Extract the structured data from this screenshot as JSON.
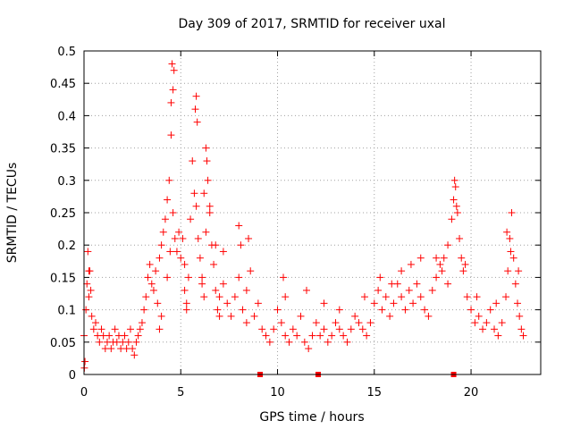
{
  "chart_data": {
    "type": "scatter",
    "title": "Day 309 of 2017, SRMTID for receiver uxal",
    "xlabel": "GPS time / hours",
    "ylabel": "SRMTID / TECUs",
    "xlim": [
      0,
      23.6
    ],
    "ylim": [
      0,
      0.5
    ],
    "xticks": [
      0,
      5,
      10,
      15,
      20
    ],
    "xtick_labels": [
      "0",
      "5",
      "10",
      "15",
      "20"
    ],
    "yticks": [
      0,
      0.05,
      0.1,
      0.15,
      0.2,
      0.25,
      0.3,
      0.35,
      0.4,
      0.45,
      0.5
    ],
    "ytick_labels": [
      "0",
      "0.05",
      "0.1",
      "0.15",
      "0.2",
      "0.25",
      "0.3",
      "0.35",
      "0.4",
      "0.45",
      "0.5"
    ],
    "grid": true,
    "marker": "plus",
    "color": "#ff0000",
    "zero_markers_x": [
      9.1,
      12.1,
      19.1
    ],
    "series": [
      {
        "name": "SRMTID",
        "x": [
          0.0,
          0.05,
          0.1,
          0.15,
          0.2,
          0.25,
          0.3,
          0.35,
          0.4,
          0.5,
          0.6,
          0.7,
          0.8,
          0.9,
          1.0,
          1.1,
          1.2,
          1.3,
          1.4,
          1.5,
          1.6,
          1.7,
          1.8,
          1.9,
          2.0,
          2.1,
          2.2,
          2.3,
          2.4,
          2.5,
          2.6,
          2.7,
          2.8,
          2.9,
          3.0,
          3.1,
          3.2,
          3.3,
          3.4,
          3.5,
          3.6,
          3.7,
          3.8,
          3.9,
          4.0,
          4.1,
          4.2,
          4.3,
          4.4,
          4.5,
          4.6,
          4.7,
          4.8,
          4.9,
          5.0,
          5.1,
          5.2,
          5.3,
          5.4,
          5.5,
          5.6,
          5.7,
          5.8,
          5.9,
          6.0,
          6.1,
          6.2,
          6.3,
          6.4,
          6.5,
          6.6,
          6.7,
          6.8,
          6.9,
          7.0,
          7.2,
          7.4,
          7.6,
          7.8,
          8.0,
          8.2,
          8.4,
          8.6,
          8.8,
          9.0,
          9.2,
          9.4,
          9.6,
          9.8,
          10.0,
          10.2,
          10.4,
          10.6,
          10.8,
          11.0,
          11.2,
          11.4,
          11.6,
          11.8,
          12.0,
          12.2,
          12.4,
          12.6,
          12.8,
          13.0,
          13.2,
          13.4,
          13.6,
          13.8,
          14.0,
          14.2,
          14.4,
          14.6,
          14.8,
          15.0,
          15.2,
          15.4,
          15.6,
          15.8,
          16.0,
          16.2,
          16.4,
          16.6,
          16.8,
          17.0,
          17.2,
          17.4,
          17.6,
          17.8,
          18.0,
          18.2,
          18.4,
          18.6,
          18.8,
          19.0,
          19.1,
          19.2,
          19.3,
          19.4,
          19.6,
          19.8,
          20.0,
          20.2,
          20.4,
          20.6,
          20.8,
          21.0,
          21.2,
          21.4,
          21.6,
          21.8,
          21.9,
          22.0,
          22.1,
          22.2,
          22.3,
          22.4,
          22.5,
          22.6,
          22.7,
          4.55,
          4.6,
          4.5,
          4.65,
          5.75,
          5.85,
          5.8,
          6.3,
          6.35,
          6.5,
          19.15,
          19.25,
          8.0,
          8.1,
          0.25,
          0.02,
          4.0,
          3.9,
          4.3,
          4.45,
          5.2,
          5.3,
          6.1,
          6.2,
          6.8,
          7.0,
          7.2,
          8.4,
          8.5,
          10.3,
          10.4,
          11.5,
          12.4,
          13.2,
          14.5,
          15.3,
          15.9,
          16.4,
          16.9,
          17.4,
          18.2,
          18.5,
          18.8,
          19.5,
          19.7,
          20.3,
          21.3,
          21.85,
          22.05,
          22.45
        ],
        "y": [
          0.06,
          0.02,
          0.1,
          0.14,
          0.19,
          0.12,
          0.16,
          0.13,
          0.09,
          0.07,
          0.08,
          0.06,
          0.05,
          0.07,
          0.06,
          0.04,
          0.05,
          0.06,
          0.04,
          0.05,
          0.07,
          0.05,
          0.06,
          0.04,
          0.05,
          0.06,
          0.04,
          0.05,
          0.07,
          0.04,
          0.03,
          0.05,
          0.06,
          0.07,
          0.08,
          0.1,
          0.12,
          0.15,
          0.17,
          0.14,
          0.13,
          0.16,
          0.11,
          0.18,
          0.2,
          0.22,
          0.24,
          0.27,
          0.3,
          0.37,
          0.25,
          0.21,
          0.19,
          0.22,
          0.18,
          0.21,
          0.13,
          0.1,
          0.15,
          0.24,
          0.33,
          0.28,
          0.26,
          0.21,
          0.18,
          0.15,
          0.12,
          0.22,
          0.3,
          0.25,
          0.2,
          0.17,
          0.13,
          0.1,
          0.12,
          0.14,
          0.11,
          0.09,
          0.12,
          0.15,
          0.1,
          0.08,
          0.16,
          0.09,
          0.11,
          0.07,
          0.06,
          0.05,
          0.07,
          0.1,
          0.08,
          0.06,
          0.05,
          0.07,
          0.06,
          0.09,
          0.05,
          0.04,
          0.06,
          0.08,
          0.06,
          0.07,
          0.05,
          0.06,
          0.08,
          0.07,
          0.06,
          0.05,
          0.07,
          0.09,
          0.08,
          0.07,
          0.06,
          0.08,
          0.11,
          0.13,
          0.1,
          0.12,
          0.09,
          0.11,
          0.14,
          0.12,
          0.1,
          0.13,
          0.11,
          0.14,
          0.12,
          0.1,
          0.09,
          0.13,
          0.15,
          0.17,
          0.18,
          0.2,
          0.24,
          0.27,
          0.29,
          0.25,
          0.21,
          0.16,
          0.12,
          0.1,
          0.08,
          0.09,
          0.07,
          0.08,
          0.1,
          0.07,
          0.06,
          0.08,
          0.12,
          0.16,
          0.21,
          0.25,
          0.18,
          0.14,
          0.11,
          0.09,
          0.07,
          0.06,
          0.48,
          0.44,
          0.42,
          0.47,
          0.41,
          0.39,
          0.43,
          0.35,
          0.33,
          0.26,
          0.3,
          0.26,
          0.23,
          0.2,
          0.16,
          0.01,
          0.09,
          0.07,
          0.15,
          0.19,
          0.17,
          0.11,
          0.14,
          0.28,
          0.2,
          0.09,
          0.19,
          0.13,
          0.21,
          0.15,
          0.12,
          0.13,
          0.11,
          0.1,
          0.12,
          0.15,
          0.14,
          0.16,
          0.17,
          0.18,
          0.18,
          0.16,
          0.14,
          0.18,
          0.17,
          0.12,
          0.11,
          0.22,
          0.19,
          0.16
        ]
      }
    ]
  }
}
